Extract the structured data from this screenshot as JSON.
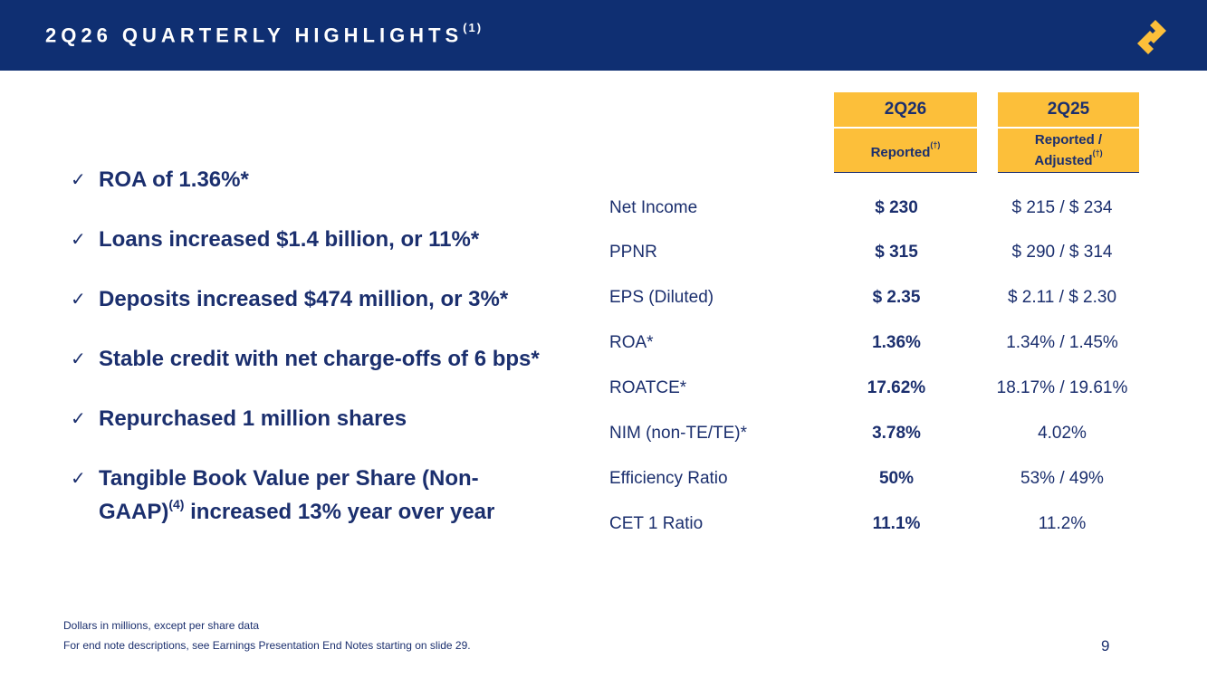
{
  "header": {
    "title": "2Q26 QUARTERLY HIGHLIGHTS",
    "title_sup": "(1)",
    "logo_icon": "s-logo-icon",
    "bg_color": "#0f2f72"
  },
  "bullets": [
    {
      "text": "ROA of 1.36%*"
    },
    {
      "text": "Loans increased $1.4 billion, or 11%*"
    },
    {
      "text": "Deposits increased $474 million, or 3%*"
    },
    {
      "text": "Stable credit with net charge-offs of 6 bps*"
    },
    {
      "text": "Repurchased 1 million shares"
    },
    {
      "text": "Tangible Book Value per Share (Non-",
      "text2": "GAAP)",
      "sup": "(4)",
      "text3": " increased 13% year over year"
    }
  ],
  "check_glyph": "✓",
  "table": {
    "accent_color": "#fcbf3a",
    "columns": [
      {
        "period": "2Q26",
        "basis": "Reported",
        "basis_sup": "(†)"
      },
      {
        "period": "2Q25",
        "basis_line1": "Reported /",
        "basis_line2": "Adjusted",
        "basis_sup": "(†)"
      }
    ],
    "rows": [
      {
        "label": "Net Income",
        "v2q26": "$ 230",
        "v2q25": "$ 215 / $ 234"
      },
      {
        "label": "PPNR",
        "v2q26": "$ 315",
        "v2q25": "$ 290 / $ 314"
      },
      {
        "label": "EPS (Diluted)",
        "v2q26": "$ 2.35",
        "v2q25": "$ 2.11 / $ 2.30"
      },
      {
        "label": "ROA*",
        "v2q26": "1.36%",
        "v2q25": "1.34% / 1.45%"
      },
      {
        "label": "ROATCE*",
        "v2q26": "17.62%",
        "v2q25": "18.17% / 19.61%"
      },
      {
        "label": "NIM (non-TE/TE)*",
        "v2q26": "3.78%",
        "v2q25": "4.02%"
      },
      {
        "label": "Efficiency Ratio",
        "v2q26": "50%",
        "v2q25": "53% / 49%"
      },
      {
        "label": "CET 1 Ratio",
        "v2q26": "11.1%",
        "v2q25": "11.2%"
      }
    ]
  },
  "footer": {
    "note1": "Dollars in millions, except per share data",
    "note2": "For end note descriptions, see Earnings Presentation End Notes starting on slide 29.",
    "page_number": "9"
  }
}
